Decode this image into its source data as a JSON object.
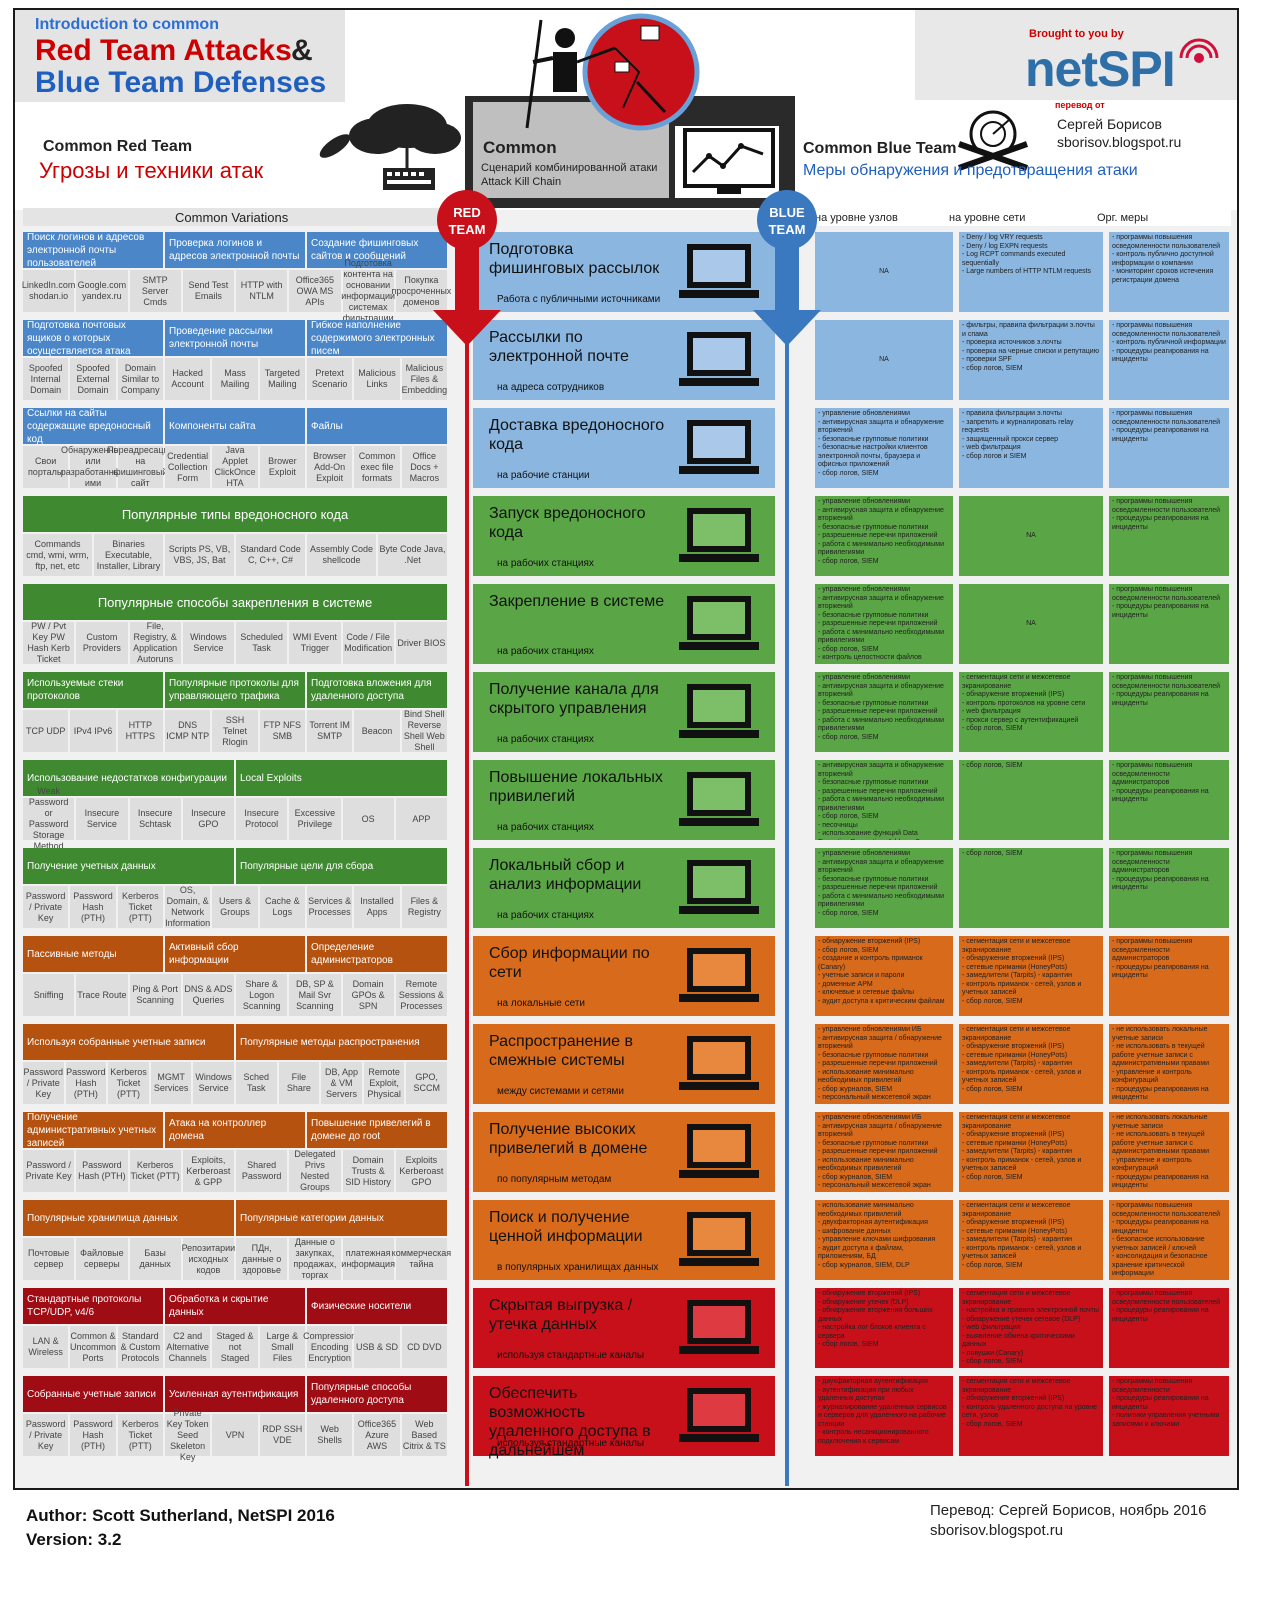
{
  "header": {
    "intro": "Introduction to common",
    "title_red": "Red Team Attacks",
    "title_amp": "&",
    "title_blue": "Blue Team Defenses",
    "brought": "Brought to you by",
    "brand": "netSPI",
    "translated_by_label": "перевод от",
    "translator": "Сергей Борисов",
    "translator_site": "sborisov.blogspot.ru",
    "red_team_en": "Common Red Team",
    "red_team_ru": "Угрозы и техники атак",
    "common_en": "Common",
    "common_ru1": "Сценарий комбинированной атаки",
    "common_ru2": "Attack Kill Chain",
    "blue_team_en": "Common Blue Team",
    "blue_team_ru": "Меры обнаружения и предотвращения атаки"
  },
  "columns": {
    "variations": "Common Variations",
    "red_badge": "RED TEAM",
    "blue_badge": "BLUE TEAM",
    "host": "на уровне узлов",
    "network": "на уровне сети",
    "org": "Орг. меры"
  },
  "colors": {
    "blue": "#8ab6e0",
    "blue_dark": "#4a86c8",
    "green": "#5aa646",
    "orange": "#d86a1c",
    "red": "#c8101a"
  },
  "rows": [
    {
      "color": "blue",
      "headers": [
        "Поиск логинов и адресов электронной почты пользователей",
        "Проверка логинов и адресов электронной почты",
        "Создание фишинговых сайтов и сообщений"
      ],
      "cells": [
        "LinkedIn.com shodan.io",
        "Google.com yandex.ru",
        "SMTP Server Cmds",
        "Send Test Emails",
        "HTTP with NTLM",
        "Office365 OWA MS APIs",
        "Подготовка контента на основании информации системах фильтрации",
        "Покупка просроченных доменов"
      ],
      "stage1": "Подготовка фишинговых рассылок",
      "stage2": "Работа с публичными источниками",
      "host": "NA",
      "net": "- Deny / log VRY requests\n- Deny / log EXPN requests\n- Log RCPT commands executed sequentially\n- Large numbers of HTTP NTLM requests",
      "org": "- программы повышения осведомленности пользователей\n- контроль публично доступной информации о компании\n- мониторинг сроков истечения регистрации домена"
    },
    {
      "color": "blue",
      "headers": [
        "Подготовка почтовых ящиков о которых осуществляется атака",
        "Проведение рассылки электронной почты",
        "Гибкое наполнение содержимого электронных писем"
      ],
      "cells": [
        "Spoofed Internal Domain",
        "Spoofed External Domain",
        "Domain Similar to Company",
        "Hacked Account",
        "Mass Mailing",
        "Targeted Mailing",
        "Pretext Scenario",
        "Malicious Links",
        "Malicious Files & Embedding"
      ],
      "stage1": "Рассылки по электронной почте",
      "stage2": "на адреса сотрудников",
      "host": "NA",
      "net": "- фильтры, правила фильтрации э.почты и спама\n- проверка источников э.почты\n- проверка на черные списки и репутацию\n- проверки SPF\n- сбор логов, SIEM",
      "org": "- программы повышения осведомленности пользователей\n- контроль публичной информации\n- процедуры реагирования на инциденты"
    },
    {
      "color": "blue",
      "headers": [
        "Ссылки на сайты содержащие вредоносный код",
        "Компоненты сайта",
        "Файлы"
      ],
      "cells": [
        "Свои порталы",
        "Обнаруженные или разработанные ими",
        "Переадресация на фишинговый сайт",
        "Credential Collection Form",
        "Java Applet ClickOnce HTA",
        "Brower Exploit",
        "Browser Add-On Exploit",
        "Common exec file formats",
        "Office Docs + Macros"
      ],
      "stage1": "Доставка вредоносного кода",
      "stage2": "на рабочие станции",
      "host": "- управление обновлениями\n- антивирусная защита и обнаружение вторжений\n- безопасные групповые политики\n- безопасные настройки клиентов электронной почты, браузера и офисных приложений\n- сбор логов, SIEM",
      "net": "- правила фильтрации э.почты\n- запретить и журналировать relay requests\n- защищенный прокси сервер\n- web фильтрация\n- сбор логов и SIEM",
      "org": "- программы повышения осведомленности пользователей\n- процедуры реагирования на инциденты"
    },
    {
      "color": "green",
      "headers": [
        "Популярные типы вредоносного кода"
      ],
      "cells": [
        "Commands cmd, wmi, wrm, ftp, net, etc",
        "Binaries Executable, Installer, Library",
        "Scripts PS, VB, VBS, JS, Bat",
        "Standard Code C, C++, C#",
        "Assembly Code shellcode",
        "Byte Code Java, .Net"
      ],
      "stage1": "Запуск вредоносного кода",
      "stage2": "на рабочих станциях",
      "host": "- управление обновлениями\n- антивирусная защита и обнаружение вторжений\n- безопасные групповые политики\n- разрешенные перечни приложений\n- работа с минимально необходимыми привилегиями\n- сбор логов, SIEM",
      "net": "NA",
      "org": "- программы повышения осведомленности пользователей\n- процедуры реагирования на инциденты"
    },
    {
      "color": "green",
      "headers": [
        "Популярные способы закрепления в системе"
      ],
      "cells": [
        "PW / Pvt Key PW Hash Kerb Ticket",
        "Custom Providers",
        "File, Registry, & Application Autoruns",
        "Windows Service",
        "Scheduled Task",
        "WMI Event Trigger",
        "Code / File Modification",
        "Driver BIOS"
      ],
      "stage1": "Закрепление в системе",
      "stage2": "на рабочих станциях",
      "host": "- управление обновлениями\n- антивирусная защита и обнаружение вторжений\n- безопасные групповые политики\n- разрешенные перечни приложений\n- работа с минимально необходимыми привилегиями\n- сбор логов, SIEM\n- контроль целостности файлов",
      "net": "NA",
      "org": "- программы повышения осведомленности пользователей\n- процедуры реагирования на инциденты"
    },
    {
      "color": "green",
      "headers": [
        "Используемые стеки протоколов",
        "Популярные протоколы для управляющего трафика",
        "Подготовка вложения для удаленного доступа"
      ],
      "cells": [
        "TCP UDP",
        "IPv4 IPv6",
        "HTTP HTTPS",
        "DNS ICMP NTP",
        "SSH Telnet Rlogin",
        "FTP NFS SMB",
        "Torrent IM SMTP",
        "Beacon",
        "Bind Shell Reverse Shell Web Shell"
      ],
      "stage1": "Получение канала для скрытого управления",
      "stage2": "на рабочих станциях",
      "host": "- управление обновлениями\n- антивирусная защита и обнаружение вторжений\n- безопасные групповые политики\n- разрешенные перечни приложений\n- работа с минимально необходимыми привилегиями\n- сбор логов, SIEM",
      "net": "- сегментация сети и межсетевое экранирование\n- обнаружение вторжений (IPS)\n- контроль протоколов на уровне сети\n- web фильтрация\n- прокси сервер с аутентификацией\n- сбор логов, SIEM",
      "org": "- программы повышения осведомленности пользователей\n- процедуры реагирования на инциденты"
    },
    {
      "color": "green",
      "headers": [
        "Использование недостатков конфигурации",
        "Local Exploits"
      ],
      "cells": [
        "Weak Password or Password Storage Method",
        "Insecure Service",
        "Insecure Schtask",
        "Insecure GPO",
        "Insecure Protocol",
        "Excessive Privilege",
        "OS",
        "APP"
      ],
      "stage1": "Повышение локальных привилегий",
      "stage2": "на рабочих станциях",
      "host": "- антивирусная защита и обнаружение вторжений\n- безопасные групповые политики\n- разрешенные перечни приложений\n- работа с минимально необходимыми привилегиями\n- сбор логов, SIEM\n- песочницы\n- использование функций Data Execution Prevention, Address Space Layout Randomization, Structured Exception Handling в своих приложениях",
      "net": "- сбор логов, SIEM",
      "org": "- программы повышения осведомленности администраторов\n- процедуры реагирования на инциденты"
    },
    {
      "color": "green",
      "headers": [
        "Получение учетных данных",
        "Популярные цели для сбора"
      ],
      "cells": [
        "Password / Private Key",
        "Password Hash (PTH)",
        "Kerberos Ticket (PTT)",
        "OS, Domain, & Network Information",
        "Users & Groups",
        "Cache & Logs",
        "Services & Processes",
        "Installed Apps",
        "Files & Registry"
      ],
      "stage1": "Локальный сбор и анализ информации",
      "stage2": "на рабочих станциях",
      "host": "- управление обновлениями\n- антивирусная защита и обнаружение вторжений\n- безопасные групповые политики\n- разрешенные перечни приложений\n- работа с минимально необходимыми привилегиями\n- сбор логов, SIEM",
      "net": "- сбор логов, SIEM",
      "org": "- программы повышения осведомленности администраторов\n- процедуры реагирования на инциденты"
    },
    {
      "color": "orange",
      "headers": [
        "Пассивные методы",
        "Активный сбор информации",
        "Определение администраторов"
      ],
      "cells": [
        "Sniffing",
        "Trace Route",
        "Ping & Port Scanning",
        "DNS & ADS Queries",
        "Share & Logon Scanning",
        "DB, SP & Mail Svr Scanning",
        "Domain GPOs & SPN",
        "Remote Sessions & Processes"
      ],
      "stage1": "Сбор информации по сети",
      "stage2": "на локальные сети",
      "host": "- обнаружение вторжений (IPS)\n- сбор логов, SIEM\n- создание и контроль приманок (Canary)\n- учетные записи и пароли\n- доменные APM\n- ключевые и сетевые файлы\n- аудит доступа к критическим файлам",
      "net": "- сегментация сети и межсетевое экранирование\n- обнаружение вторжений (IPS)\n- сетевые приманки (HoneyPots)\n- замедлители (Tarpits) - карантин\n- контроль приманок - сетей, узлов и учетных записей\n- сбор логов, SIEM",
      "org": "- программы повышения осведомленности администраторов\n- процедуры реагирования на инциденты"
    },
    {
      "color": "orange",
      "headers": [
        "Используя собранные учетные записи",
        "Популярные методы распространения"
      ],
      "cells": [
        "Password / Private Key",
        "Password Hash (PTH)",
        "Kerberos Ticket (PTT)",
        "MGMT Services",
        "Windows Service",
        "Sched Task",
        "File Share",
        "DB, App & VM Servers",
        "Remote Exploit, Physical",
        "GPO, SCCM"
      ],
      "stage1": "Распространение в смежные системы",
      "stage2": "между системами и сетями",
      "host": "- управление обновлениями ИБ\n- антивирусная защита / обнаружение вторжений\n- безопасные групповые политики\n- разрешенные перечни приложений\n- использование минимально необходимых привилегий\n- сбор журналов, SIEM\n- персональный межсетевой экран",
      "net": "- сегментация сети и межсетевое экранирование\n- обнаружение вторжений (IPS)\n- сетевые приманки (HoneyPots)\n- замедлители (Tarpits) - карантин\n- контроль приманок - сетей, узлов и учетных записей\n- сбор логов, SIEM",
      "org": "- не использовать локальные учетные записи\n- не использовать в текущей работе учетные записи с административными правами\n- управление и контроль конфигураций\n- процедуры реагирования на инциденты"
    },
    {
      "color": "orange",
      "headers": [
        "Получение административных учетных записей",
        "Атака на контроллер домена",
        "Повышение привелегий в домене до root"
      ],
      "cells": [
        "Password / Private Key",
        "Password Hash (PTH)",
        "Kerberos Ticket (PTT)",
        "Exploits, Kerberoast & GPP",
        "Shared Password",
        "Delegated Privs Nested Groups",
        "Domain Trusts & SID History",
        "Exploits Kerberoast GPO"
      ],
      "stage1": "Получение высоких привелегий в домене",
      "stage2": "по популярным методам",
      "host": "- управление обновлениями ИБ\n- антивирусная защита / обнаружение вторжений\n- безопасные групповые политики\n- разрешенные перечни приложений\n- использование минимально необходимых привилегий\n- сбор журналов, SIEM\n- персональный межсетевой экран",
      "net": "- сегментация сети и межсетевое экранирование\n- обнаружение вторжений (IPS)\n- сетевые приманки (HoneyPots)\n- замедлители (Tarpits) - карантин\n- контроль приманок - сетей, узлов и учетных записей\n- сбор логов, SIEM",
      "org": "- не использовать локальные учетные записи\n- не использовать в текущей работе учетные записи с административными правами\n- управление и контроль конфигураций\n- процедуры реагирования на инциденты"
    },
    {
      "color": "orange",
      "headers": [
        "Популярные хранилища данных",
        "Популярные категории данных"
      ],
      "cells": [
        "Почтовые сервер",
        "Файловые серверы",
        "Базы данных",
        "Репозитарии исходных кодов",
        "ПДн, данные о здоровье",
        "Данные о закупках, продажах, торгах",
        "платежная информация",
        "коммерческая тайна"
      ],
      "stage1": "Поиск и получение ценной информации",
      "stage2": "в популярных хранилищах данных",
      "host": "- использование минимально необходимых привилегий\n- двухфакторная аутентификация\n- шифрование данных\n- управление ключами шифрования\n- аудит доступа к файлам, приложениям, БД\n- сбор журналов, SIEM, DLP",
      "net": "- сегментация сети и межсетевое экранирование\n- обнаружение вторжений (IPS)\n- сетевые приманки (HoneyPots)\n- замедлители (Tarpits) - карантин\n- контроль приманок - сетей, узлов и учетных записей\n- сбор логов, SIEM",
      "org": "- программы повышения осведомленности пользователей\n- процедуры реагирования на инциденты\n- безопасное использование учетных записей / ключей\n- консолидация и безопасное хранение критической информации"
    },
    {
      "color": "red",
      "headers": [
        "Стандартные протоколы TCP/UDP, v4/6",
        "Обработка и скрытие данных",
        "Физические носители"
      ],
      "cells": [
        "LAN & Wireless",
        "Common & Uncommon Ports",
        "Standard & Custom Protocols",
        "C2 and Alternative Channels",
        "Staged & not Staged",
        "Large & Small Files",
        "Compression Encoding Encryption",
        "USB & SD",
        "CD DVD"
      ],
      "stage1": "Скрытая выгрузка / утечка данных",
      "stage2": "используя стандартные каналы",
      "host": "- обнаружение вторжений (IPS)\n- обнаружение утечек (DLP)\n- обнаружение вторжения больших данных\n- настройка лог блоков клиента с сервера\n- сбор логов, SIEM",
      "net": "- сегментация сети и межсетевое экранирование\n- настройка и правила электронной почты\n- обнаружение утечек сетевое (DLP)\n- web фильтрация\n- выявление обмена критическими данных\n- ловушки (Canary)\n- сбор логов, SIEM",
      "org": "- программы повышения осведомленности пользователей\n- процедуры реагирования на инциденты"
    },
    {
      "color": "red",
      "headers": [
        "Собранные учетные записи",
        "Усиленная аутентификация",
        "Популярные способы удаленного доступа"
      ],
      "cells": [
        "Password / Private Key",
        "Password Hash (PTH)",
        "Kerberos Ticket (PTT)",
        "Private Key Token Seed Skeleton Key",
        "VPN",
        "RDP SSH VDE",
        "Web Shells",
        "Office365 Azure AWS",
        "Web Based Citrix & TS"
      ],
      "stage1": "Обеспечить возможность удаленного доступа в дальнейшем",
      "stage2": "используя стандартные каналы",
      "host": "- двухфакторная аутентификация\n- аутентификация при любых удаленных доступах\n- журналирование удаленных сервисов и серверов для удаленного на рабочие станции\n- контроль несанкционированного подключения к сервисам",
      "net": "- сегментация сети и межсетевое экранирование\n- обнаружение вторжений (IPS)\n- контроль удаленного доступа на уровне сети, узлов\n- сбор логов, SIEM",
      "org": "- программы повышения осведомленности\n- процедуры реагирования на инциденты\n- политики управления учетными записями и ключами"
    }
  ],
  "footer": {
    "author": "Author: Scott Sutherland, NetSPI 2016",
    "version": "Version: 3.2",
    "translation": "Перевод: Сергей Борисов, ноябрь 2016",
    "site": "sborisov.blogspot.ru"
  }
}
